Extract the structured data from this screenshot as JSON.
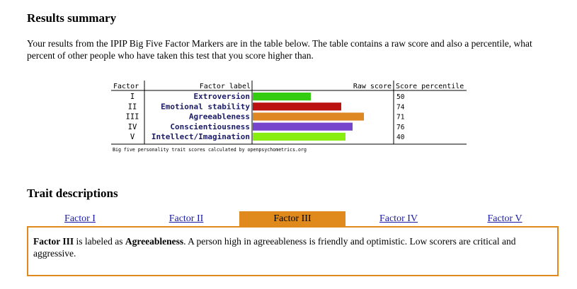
{
  "summary": {
    "heading": "Results summary",
    "intro": "Your results from the IPIP Big Five Factor Markers are in the table below. The table contains a raw score and also a percentile, what percent of other people who have taken this test that you score higher than."
  },
  "chart_data": {
    "type": "table",
    "headers": {
      "factor": "Factor",
      "label": "Factor label",
      "raw": "Raw score",
      "percentile": "Score percentile"
    },
    "rows": [
      {
        "factor": "I",
        "label": "Extroversion",
        "raw_fraction": 0.51,
        "percentile": "50",
        "color": "#33cc11"
      },
      {
        "factor": "II",
        "label": "Emotional stability",
        "raw_fraction": 0.78,
        "percentile": "74",
        "color": "#bb1111"
      },
      {
        "factor": "III",
        "label": "Agreeableness",
        "raw_fraction": 0.98,
        "percentile": "71",
        "color": "#dd8822"
      },
      {
        "factor": "IV",
        "label": "Conscientiousness",
        "raw_fraction": 0.88,
        "percentile": "76",
        "color": "#7744cc"
      },
      {
        "factor": "V",
        "label": "Intellect/Imagination",
        "raw_fraction": 0.82,
        "percentile": "40",
        "color": "#88ee11"
      }
    ],
    "caption": "Big five personality trait scores calculated by openpsychometrics.org"
  },
  "traits": {
    "heading": "Trait descriptions",
    "tabs": [
      "Factor I",
      "Factor II",
      "Factor III",
      "Factor IV",
      "Factor V"
    ],
    "active_tab": 2,
    "desc_factor": "Factor III",
    "desc_mid": " is labeled as ",
    "desc_trait": "Agreeableness",
    "desc_rest": ". A person high in agreeableness is friendly and optimistic. Low scorers are critical and aggressive."
  },
  "colors": {
    "accent": "#e08a1e",
    "link": "#1a1aa6"
  }
}
